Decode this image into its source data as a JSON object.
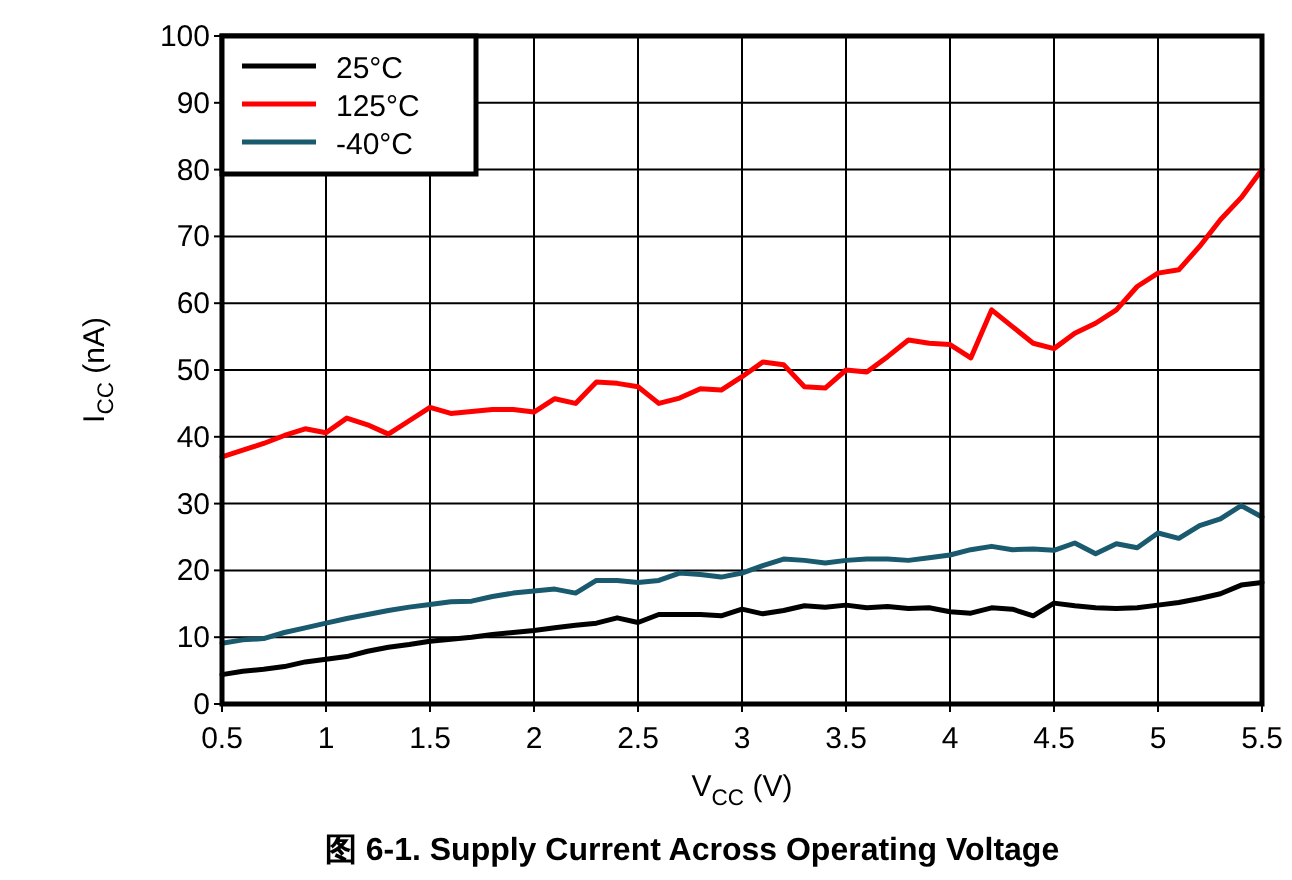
{
  "chart_data": {
    "type": "line",
    "title": "图 6-1. Supply Current Across Operating Voltage",
    "xlabel": "V$_{CC}$ (V)",
    "ylabel": "I$_{CC}$ (nA)",
    "x": [
      0.5,
      0.6,
      0.7,
      0.8,
      0.9,
      1.0,
      1.1,
      1.2,
      1.3,
      1.4,
      1.5,
      1.6,
      1.7,
      1.8,
      1.9,
      2.0,
      2.1,
      2.2,
      2.3,
      2.4,
      2.5,
      2.6,
      2.7,
      2.8,
      2.9,
      3.0,
      3.1,
      3.2,
      3.3,
      3.4,
      3.5,
      3.6,
      3.7,
      3.8,
      3.9,
      4.0,
      4.1,
      4.2,
      4.3,
      4.4,
      4.5,
      4.6,
      4.7,
      4.8,
      4.9,
      5.0,
      5.1,
      5.2,
      5.3,
      5.4,
      5.5
    ],
    "series": [
      {
        "name": "25°C",
        "color": "#000000",
        "values": [
          4.4,
          4.9,
          5.2,
          5.6,
          6.3,
          6.7,
          7.1,
          7.9,
          8.5,
          8.9,
          9.4,
          9.7,
          10.0,
          10.4,
          10.7,
          11.0,
          11.4,
          11.8,
          12.1,
          12.9,
          12.2,
          13.4,
          13.4,
          13.4,
          13.2,
          14.2,
          13.5,
          14.0,
          14.7,
          14.5,
          14.8,
          14.4,
          14.6,
          14.3,
          14.4,
          13.8,
          13.6,
          14.4,
          14.2,
          13.2,
          15.1,
          14.7,
          14.4,
          14.3,
          14.4,
          14.8,
          15.2,
          15.8,
          16.5,
          17.8,
          18.2
        ]
      },
      {
        "name": "125°C",
        "color": "#ff0000",
        "values": [
          37.0,
          38.0,
          39.0,
          40.2,
          41.2,
          40.6,
          42.8,
          41.8,
          40.4,
          42.4,
          44.4,
          43.5,
          43.8,
          44.1,
          44.1,
          43.7,
          45.7,
          45.0,
          48.2,
          48.0,
          47.5,
          45.0,
          45.8,
          47.2,
          47.0,
          49.0,
          51.2,
          50.8,
          47.5,
          47.3,
          50.0,
          49.7,
          52.0,
          54.5,
          54.0,
          53.8,
          51.8,
          59.0,
          56.5,
          54.0,
          53.2,
          55.5,
          57.0,
          59.0,
          62.5,
          64.5,
          65.0,
          68.5,
          72.5,
          75.8,
          80.0
        ]
      },
      {
        "name": "-40°C",
        "color": "#1a5a6e",
        "values": [
          9.1,
          9.6,
          9.8,
          10.7,
          11.4,
          12.1,
          12.8,
          13.4,
          14.0,
          14.5,
          14.9,
          15.3,
          15.4,
          16.1,
          16.6,
          16.9,
          17.2,
          16.6,
          18.5,
          18.5,
          18.2,
          18.5,
          19.6,
          19.4,
          19.0,
          19.6,
          20.7,
          21.7,
          21.5,
          21.1,
          21.5,
          21.7,
          21.7,
          21.5,
          21.9,
          22.3,
          23.1,
          23.6,
          23.1,
          23.2,
          23.0,
          24.1,
          22.5,
          24.0,
          23.4,
          25.6,
          24.8,
          26.7,
          27.7,
          29.7,
          28.0
        ]
      }
    ],
    "xlim": [
      0.5,
      5.5
    ],
    "xticks": [
      0.5,
      1,
      1.5,
      2,
      2.5,
      3,
      3.5,
      4,
      4.5,
      5,
      5.5
    ],
    "ylim": [
      0,
      100
    ],
    "yticks": [
      0,
      10,
      20,
      30,
      40,
      50,
      60,
      70,
      80,
      90,
      100
    ],
    "grid": true,
    "legend": "top left"
  }
}
